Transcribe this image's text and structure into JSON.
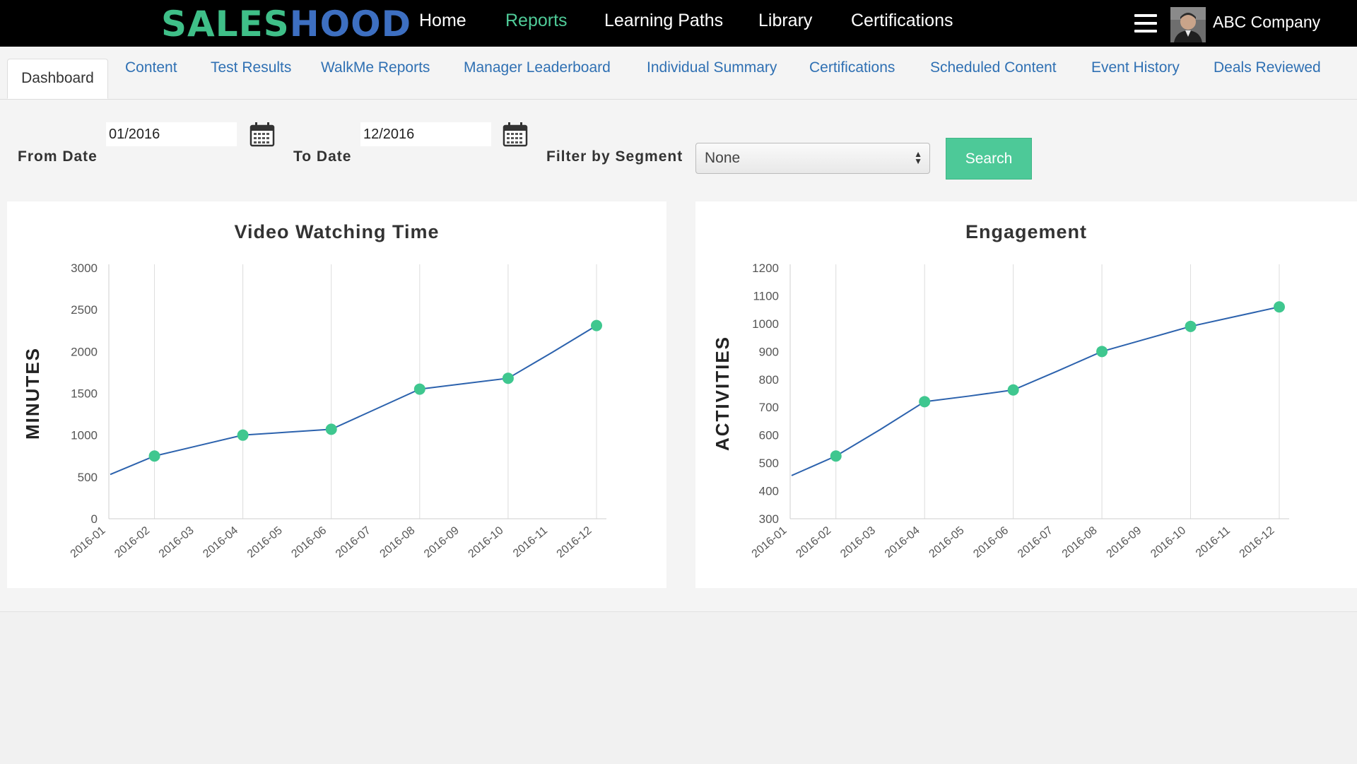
{
  "brand": {
    "logo_part1": "SALES",
    "logo_part2": "HOOD"
  },
  "nav": {
    "items": [
      {
        "label": "Home"
      },
      {
        "label": "Reports",
        "active": true
      },
      {
        "label": "Learning Paths"
      },
      {
        "label": "Library"
      },
      {
        "label": "Certifications"
      }
    ],
    "company": "ABC Company",
    "menu_icon": "hamburger-icon",
    "avatar_icon": "user-avatar"
  },
  "tabs": [
    {
      "label": "Dashboard",
      "active": true
    },
    {
      "label": "Content"
    },
    {
      "label": "Test Results"
    },
    {
      "label": "WalkMe Reports"
    },
    {
      "label": "Manager Leaderboard"
    },
    {
      "label": "Individual Summary"
    },
    {
      "label": "Certifications"
    },
    {
      "label": "Scheduled Content"
    },
    {
      "label": "Event History"
    },
    {
      "label": "Deals Reviewed"
    }
  ],
  "filters": {
    "from_label": "From Date",
    "from_value": "01/2016",
    "to_label": "To Date",
    "to_value": "12/2016",
    "segment_label": "Filter by Segment",
    "segment_value": "None",
    "search_label": "Search",
    "calendar_icon": "calendar-icon"
  },
  "colors": {
    "line": "#2c62ad",
    "marker": "#3fc78f",
    "accent": "#4dc998",
    "link": "#2f70b3"
  },
  "chart_data": [
    {
      "type": "line",
      "title": "Video Watching Time",
      "ylabel": "MINUTES",
      "xlabel": "",
      "categories": [
        "2016-01",
        "2016-02",
        "2016-03",
        "2016-04",
        "2016-05",
        "2016-06",
        "2016-07",
        "2016-08",
        "2016-09",
        "2016-10",
        "2016-11",
        "2016-12"
      ],
      "yticks": [
        0,
        500,
        1000,
        1500,
        2000,
        2500,
        3000
      ],
      "ylim": [
        0,
        3000
      ],
      "series": [
        {
          "values": [
            530,
            750,
            875,
            1000,
            1035,
            1070,
            1310,
            1550,
            1615,
            1680,
            1990,
            2310
          ]
        }
      ],
      "markers": [
        "2016-02",
        "2016-04",
        "2016-06",
        "2016-08",
        "2016-10",
        "2016-12"
      ],
      "grid": "vertical at marked months"
    },
    {
      "type": "line",
      "title": "Engagement",
      "ylabel": "ACTIVITIES",
      "xlabel": "",
      "categories": [
        "2016-01",
        "2016-02",
        "2016-03",
        "2016-04",
        "2016-05",
        "2016-06",
        "2016-07",
        "2016-08",
        "2016-09",
        "2016-10",
        "2016-11",
        "2016-12"
      ],
      "yticks": [
        300,
        400,
        500,
        600,
        700,
        800,
        900,
        1000,
        1100,
        1200
      ],
      "ylim": [
        300,
        1200
      ],
      "series": [
        {
          "values": [
            455,
            525,
            620,
            720,
            740,
            762,
            830,
            900,
            945,
            990,
            1025,
            1060
          ]
        }
      ],
      "markers": [
        "2016-02",
        "2016-04",
        "2016-06",
        "2016-08",
        "2016-10",
        "2016-12"
      ],
      "grid": "vertical at marked months"
    }
  ]
}
